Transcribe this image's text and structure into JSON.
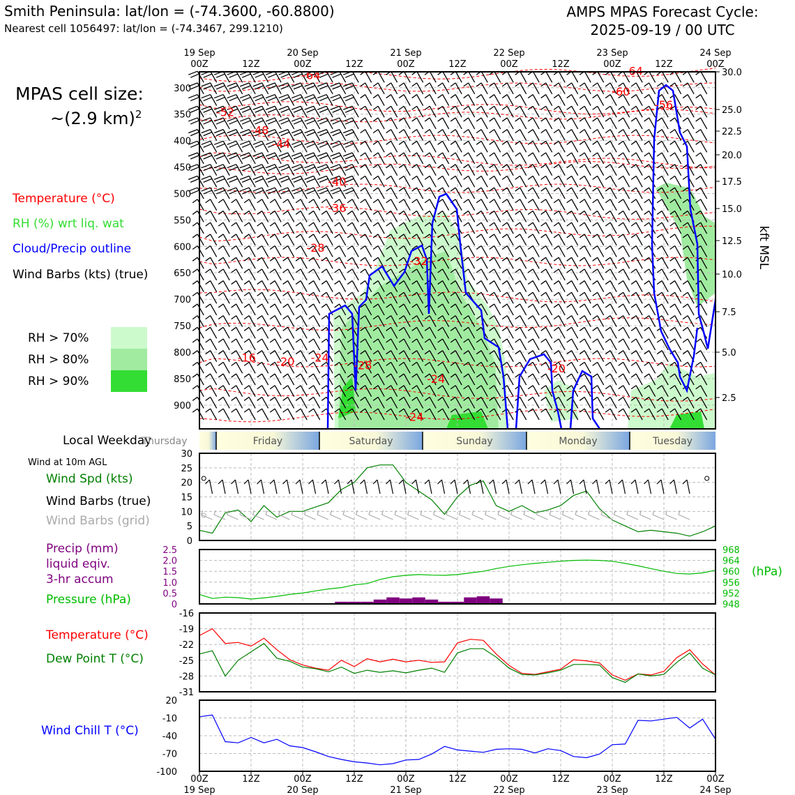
{
  "header": {
    "title": "Smith Peninsula: lat/lon = (-74.3600, -60.8800)",
    "subtitle": "Nearest cell 1056497: lat/lon = (-74.3467, 299.1210)",
    "cycle_line1": "AMPS MPAS Forecast Cycle:",
    "cycle_line2": "2025-09-19 / 00 UTC"
  },
  "cell_size": {
    "label": "MPAS cell size:",
    "value": "~(2.9 km)",
    "exponent": "2"
  },
  "legend": {
    "temperature": "Temperature (°C)",
    "rh": "RH (%) wrt liq. wat",
    "cloud": "Cloud/Precip outline",
    "barbs": "Wind Barbs (kts) (true)",
    "rh70": "RH > 70%",
    "rh80": "RH > 80%",
    "rh90": "RH > 90%"
  },
  "colors": {
    "temperature": "#ff0000",
    "rh_text": "#33dd33",
    "cloud": "#0000ff",
    "rh70": "#ccfacc",
    "rh80": "#a0eba0",
    "rh90": "#33dd33",
    "pressure": "#00aa00",
    "precip": "#7f007f",
    "windspd": "#008000",
    "windchill": "#0000ff",
    "grid_barb": "#aaaaaa"
  },
  "time_axis": {
    "top_dates": [
      "19 Sep",
      "",
      "20 Sep",
      "",
      "21 Sep",
      "",
      "22 Sep",
      "",
      "23 Sep",
      "",
      "24 Sep"
    ],
    "hours": [
      "00Z",
      "12Z",
      "00Z",
      "12Z",
      "00Z",
      "12Z",
      "00Z",
      "12Z",
      "00Z",
      "12Z",
      "00Z"
    ],
    "bottom_dates": [
      "19 Sep",
      "",
      "20 Sep",
      "",
      "21 Sep",
      "",
      "22 Sep",
      "",
      "23 Sep",
      "",
      "24 Sep"
    ]
  },
  "weekday": {
    "label": "Local Weekday",
    "days": [
      "Thursday",
      "Friday",
      "Saturday",
      "Sunday",
      "Monday",
      "Tuesday"
    ]
  },
  "chart_data": [
    {
      "type": "contour-cross-section",
      "title": "Vertical time section",
      "ylabel_left": "hPa",
      "ylabel_right": "kft MSL",
      "pressure_ticks": [
        300,
        350,
        400,
        450,
        500,
        550,
        600,
        650,
        700,
        750,
        800,
        850,
        900
      ],
      "kft_ticks": [
        "30.0",
        "25.0",
        "22.5",
        "20.0",
        "17.5",
        "15.0",
        "12.5",
        "10.0",
        "7.5",
        "5.0",
        "2.5"
      ],
      "temperature_labels": [
        {
          "t": 26,
          "p": 284,
          "v": "-64"
        },
        {
          "t": 101,
          "p": 276,
          "v": "-64"
        },
        {
          "t": 98,
          "p": 315,
          "v": "-60"
        },
        {
          "t": 6,
          "p": 354,
          "v": "-52"
        },
        {
          "t": 14,
          "p": 388,
          "v": "-48"
        },
        {
          "t": 19,
          "p": 414,
          "v": "-44"
        },
        {
          "t": 32,
          "p": 485,
          "v": "-40"
        },
        {
          "t": 32,
          "p": 535,
          "v": "-36"
        },
        {
          "t": 27,
          "p": 610,
          "v": "-28"
        },
        {
          "t": 51,
          "p": 635,
          "v": "-32"
        },
        {
          "t": 108,
          "p": 340,
          "v": "-56"
        },
        {
          "t": 11,
          "p": 818,
          "v": "-16"
        },
        {
          "t": 20,
          "p": 825,
          "v": "-20"
        },
        {
          "t": 28,
          "p": 818,
          "v": "-24"
        },
        {
          "t": 38,
          "p": 832,
          "v": "-28"
        },
        {
          "t": 55,
          "p": 858,
          "v": "-24"
        },
        {
          "t": 50,
          "p": 930,
          "v": "-24"
        },
        {
          "t": 83,
          "p": 838,
          "v": "-20"
        }
      ]
    },
    {
      "type": "line",
      "title": "Wind at 10m AGL",
      "ylabel": "Wind Spd (kts)",
      "ylim": [
        0,
        30
      ],
      "yticks": [
        0,
        5,
        10,
        15,
        20,
        25,
        30
      ],
      "legend": [
        "Wind Spd (kts)",
        "Wind Barbs (true)",
        "Wind Barbs (grid)"
      ],
      "x_hours": [
        0,
        3,
        6,
        9,
        12,
        15,
        18,
        21,
        24,
        27,
        30,
        33,
        36,
        39,
        42,
        45,
        48,
        51,
        54,
        57,
        60,
        63,
        66,
        69,
        72,
        75,
        78,
        81,
        84,
        87,
        90,
        93,
        96,
        99,
        102,
        105,
        108,
        111,
        114,
        117,
        120
      ],
      "values": [
        3.5,
        2.5,
        9.5,
        10.5,
        6.5,
        12,
        8,
        10,
        10,
        11.5,
        13,
        17.5,
        20,
        25,
        26,
        26,
        20,
        17,
        14,
        9,
        15,
        19,
        20.5,
        12,
        10,
        12,
        9.5,
        10.5,
        12,
        15.5,
        17,
        11,
        7,
        5,
        3,
        3.5,
        3,
        2.5,
        1.5,
        3,
        5
      ]
    },
    {
      "type": "bar+line",
      "title": "Precip and pressure",
      "ylabel_left": "Precip (mm) liquid eqiv. 3-hr accum",
      "ylabel_right": "(hPa)",
      "precip_ylim": [
        0,
        2.5
      ],
      "precip_yticks": [
        "0",
        "0.5",
        "1.0",
        "1.5",
        "2.0",
        "2.5"
      ],
      "pressure_ylim": [
        948,
        968
      ],
      "pressure_yticks": [
        "948",
        "952",
        "956",
        "960",
        "964",
        "968"
      ],
      "legend": [
        "Precip (mm)",
        "liquid eqiv.",
        "3-hr accum",
        "Pressure (hPa)"
      ],
      "precip_hours": [
        33,
        36,
        39,
        42,
        45,
        48,
        51,
        54,
        57,
        60,
        63,
        66,
        69
      ],
      "precip_values": [
        0.1,
        0.1,
        0.1,
        0.2,
        0.3,
        0.25,
        0.3,
        0.2,
        0.1,
        0.1,
        0.3,
        0.35,
        0.25
      ],
      "x_hours": [
        0,
        3,
        6,
        9,
        12,
        15,
        18,
        21,
        24,
        27,
        30,
        33,
        36,
        39,
        42,
        45,
        48,
        51,
        54,
        57,
        60,
        63,
        66,
        69,
        72,
        75,
        78,
        81,
        84,
        87,
        90,
        93,
        96,
        99,
        102,
        105,
        108,
        111,
        114,
        117,
        120
      ],
      "pressure_values": [
        951.5,
        950,
        950.5,
        950.3,
        949.8,
        950.2,
        950.8,
        951.5,
        952,
        952.8,
        953.5,
        954,
        955,
        955.5,
        957,
        958,
        958.5,
        958.8,
        958.6,
        958.5,
        958.8,
        959.4,
        960,
        961,
        961.8,
        962.4,
        962.9,
        963.3,
        963.7,
        964,
        964.1,
        964,
        963.7,
        962.9,
        962,
        961,
        960,
        959.2,
        959,
        959.4,
        960.4
      ]
    },
    {
      "type": "line",
      "title": "Temperature and dew point",
      "ylim": [
        -31,
        -16
      ],
      "yticks": [
        -31,
        -28,
        -25,
        -22,
        -19,
        -16
      ],
      "legend": [
        "Temperature (°C)",
        "Dew Point T (°C)"
      ],
      "x_hours": [
        0,
        3,
        6,
        9,
        12,
        15,
        18,
        21,
        24,
        27,
        30,
        33,
        36,
        39,
        42,
        45,
        48,
        51,
        54,
        57,
        60,
        63,
        66,
        69,
        72,
        75,
        78,
        81,
        84,
        87,
        90,
        93,
        96,
        99,
        102,
        105,
        108,
        111,
        114,
        117,
        120
      ],
      "series": [
        {
          "name": "Temperature (°C)",
          "values": [
            -20.3,
            -19,
            -21.8,
            -21.6,
            -22.3,
            -20.8,
            -23,
            -24.9,
            -25.9,
            -26.5,
            -26.9,
            -25,
            -26.2,
            -24.7,
            -25.3,
            -24.8,
            -25.3,
            -25,
            -25.4,
            -25.3,
            -21.7,
            -21,
            -21.2,
            -23.8,
            -26,
            -27.5,
            -27.7,
            -27.2,
            -26.7,
            -24.9,
            -25.1,
            -25.5,
            -27.8,
            -28.8,
            -27.6,
            -27.8,
            -27.1,
            -24.5,
            -23,
            -25.7,
            -27.8
          ]
        },
        {
          "name": "Dew Point T (°C)",
          "values": [
            -23.8,
            -23.2,
            -28,
            -25,
            -23.4,
            -21.8,
            -24.6,
            -25.2,
            -26.3,
            -26.6,
            -27.2,
            -26.3,
            -27.5,
            -26.9,
            -27.3,
            -27,
            -27.4,
            -26.9,
            -26.5,
            -27.3,
            -23.6,
            -22.8,
            -22.8,
            -24.4,
            -26.5,
            -27.7,
            -27.8,
            -27.4,
            -26.9,
            -25.8,
            -25.8,
            -25.9,
            -28.3,
            -29.2,
            -27.6,
            -28,
            -27.7,
            -25.4,
            -23.6,
            -26.5,
            -27.8
          ]
        }
      ]
    },
    {
      "type": "line",
      "title": "Wind chill",
      "ylabel": "Wind Chill T (°C)",
      "ylim": [
        -100,
        20
      ],
      "yticks": [
        -100,
        -70,
        -40,
        -10,
        20
      ],
      "x_hours": [
        0,
        3,
        6,
        9,
        12,
        15,
        18,
        21,
        24,
        27,
        30,
        33,
        36,
        39,
        42,
        45,
        48,
        51,
        54,
        57,
        60,
        63,
        66,
        69,
        72,
        75,
        78,
        81,
        84,
        87,
        90,
        93,
        96,
        99,
        102,
        105,
        108,
        111,
        114,
        117,
        120
      ],
      "values": [
        -8,
        -5,
        -50,
        -52,
        -43,
        -52,
        -46,
        -57,
        -60,
        -67,
        -75,
        -80,
        -84,
        -86,
        -89,
        -87,
        -81,
        -80,
        -71,
        -58,
        -64,
        -66,
        -68,
        -63,
        -62,
        -63,
        -69,
        -62,
        -65,
        -75,
        -77,
        -71,
        -55,
        -54,
        -14,
        -15,
        -12,
        -9,
        -27,
        -12,
        -46
      ]
    }
  ],
  "axis_labels": {
    "main_hpa": [
      "300",
      "350",
      "400",
      "450",
      "500",
      "550",
      "600",
      "650",
      "700",
      "750",
      "800",
      "850",
      "900"
    ],
    "main_kft_title": "kft MSL",
    "wind_header": "Wind at 10m AGL",
    "wind_spd": "Wind Spd (kts)",
    "wind_barbs_true": "Wind Barbs (true)",
    "wind_barbs_grid": "Wind Barbs (grid)",
    "precip_l1": "Precip (mm)",
    "precip_l2": "liquid eqiv.",
    "precip_l3": "3-hr accum",
    "pressure": "Pressure (hPa)",
    "hpa_right": "(hPa)",
    "temp": "Temperature (°C)",
    "dew": "Dew Point T (°C)",
    "windchill": "Wind Chill T (°C)"
  }
}
